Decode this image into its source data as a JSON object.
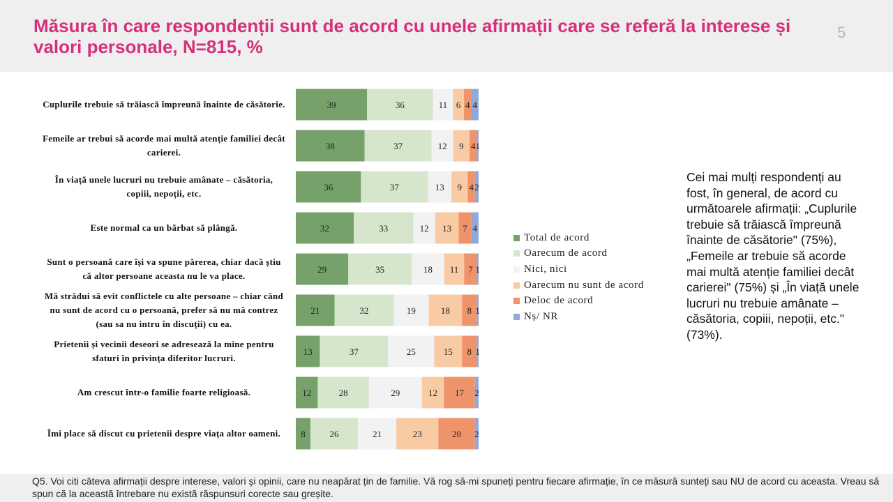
{
  "header": {
    "title": "Măsura în care respondenții sunt de acord cu unele afirmații care se referă la interese și valori personale, N=815, %",
    "page_number": "5"
  },
  "colors": {
    "total_de_acord": "#76a16a",
    "oarecum_de_acord": "#d5e6cc",
    "nici_nici": "#f2f2f2",
    "oarecum_nu": "#f8cba4",
    "deloc": "#ef936b",
    "ns_nr": "#91a9da"
  },
  "chart_data": {
    "type": "bar",
    "orientation": "horizontal",
    "stacked": true,
    "categories": [
      "Cuplurile trebuie să trăiască împreună înainte de căsătorie.",
      "Femeile ar trebui să acorde mai multă atenție familiei decât carierei.",
      "În viață unele lucruri nu trebuie amânate – căsătoria, copiii, nepoții, etc.",
      "Este normal ca un bărbat să plângă.",
      "Sunt o persoană care își va spune părerea, chiar dacă știu că altor persoane aceasta nu le va place.",
      "Mă strădui să evit conflictele cu alte persoane – chiar când nu sunt de acord cu o persoană, prefer să nu mă contrez (sau sa nu intru în discuții) cu ea.",
      "Prietenii și vecinii deseori se adresează la mine pentru sfaturi în privința diferitor lucruri.",
      "Am crescut într-o familie foarte religioasă.",
      "Îmi place să discut cu prietenii despre viața altor oameni."
    ],
    "series": [
      {
        "name": "Total de acord",
        "values": [
          39,
          38,
          36,
          32,
          29,
          21,
          13,
          12,
          8
        ]
      },
      {
        "name": "Oarecum de acord",
        "values": [
          36,
          37,
          37,
          33,
          35,
          32,
          37,
          28,
          26
        ]
      },
      {
        "name": "Nici, nici",
        "values": [
          11,
          12,
          13,
          12,
          18,
          19,
          25,
          29,
          21
        ]
      },
      {
        "name": "Oarecum nu sunt de acord",
        "values": [
          6,
          9,
          9,
          13,
          11,
          18,
          15,
          12,
          23
        ]
      },
      {
        "name": "Deloc de acord",
        "values": [
          4,
          4,
          4,
          7,
          7,
          8,
          8,
          17,
          20
        ]
      },
      {
        "name": "Nș/ NR",
        "values": [
          4,
          1,
          2,
          4,
          1,
          1,
          1,
          2,
          2
        ]
      }
    ],
    "xlim": [
      0,
      100
    ],
    "legend_position": "right"
  },
  "summary": {
    "text": "Cei mai mulți respondenți au fost, în general, de acord cu următoarele afirmații: „Cuplurile trebuie să trăiască împreună înainte de căsătorie\" (75%), „Femeile ar trebuie să acorde mai multă atenție familiei decât carierei\" (75%) și „În viață unele lucruri nu trebuie amânate – căsătoria, copiii, nepoții, etc.\" (73%)."
  },
  "footer": {
    "note": "Q5. Voi citi câteva afirmații despre interese, valori și opinii, care nu neapărat țin de familie. Vă rog să-mi spuneți pentru fiecare afirmație, în ce măsură sunteți sau NU de acord cu aceasta. Vreau să spun că la această întrebare nu există răspunsuri corecte sau greșite."
  }
}
